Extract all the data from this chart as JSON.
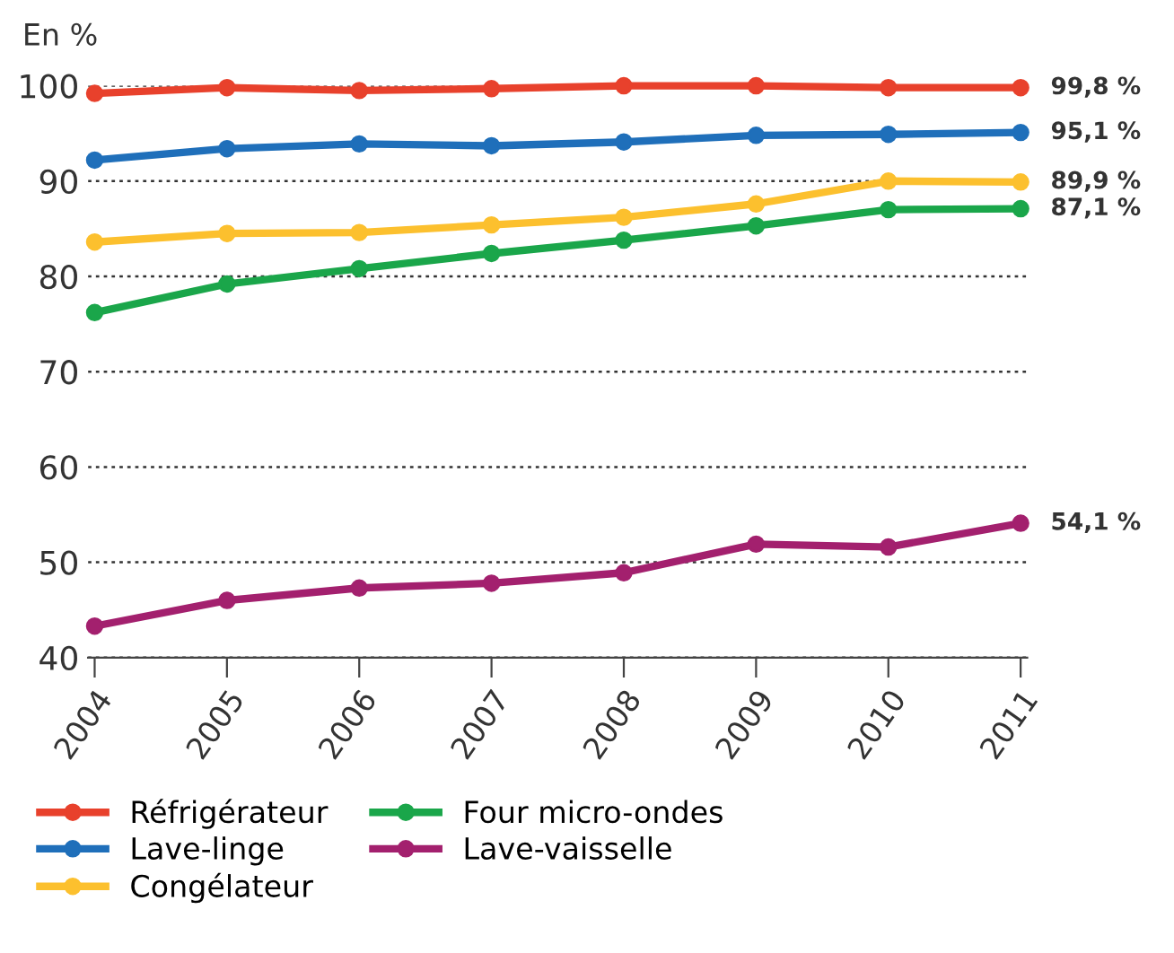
{
  "chart_data": {
    "type": "line",
    "ylabel": "En %",
    "categories": [
      "2004",
      "2005",
      "2006",
      "2007",
      "2008",
      "2009",
      "2010",
      "2011"
    ],
    "ylim": [
      40,
      100
    ],
    "yticks": [
      40,
      50,
      60,
      70,
      80,
      90,
      100
    ],
    "grid": "y",
    "legend": "bottom",
    "marker": "circle",
    "line_style": "solid",
    "series": [
      {
        "name": "Réfrigérateur",
        "color": "#e8412c",
        "values": [
          99.2,
          99.8,
          99.5,
          99.7,
          100.0,
          100.0,
          99.8,
          99.8
        ],
        "value_labels": [
          null,
          null,
          null,
          null,
          null,
          null,
          null,
          "99,8 %"
        ]
      },
      {
        "name": "Lave-linge",
        "color": "#1f6fba",
        "values": [
          92.2,
          93.4,
          93.9,
          93.7,
          94.1,
          94.8,
          94.9,
          95.1
        ],
        "value_labels": [
          null,
          null,
          null,
          null,
          null,
          null,
          null,
          "95,1 %"
        ]
      },
      {
        "name": "Congélateur",
        "color": "#fcc02e",
        "values": [
          83.6,
          84.5,
          84.6,
          85.4,
          86.2,
          87.6,
          90.0,
          89.9
        ],
        "value_labels": [
          null,
          null,
          null,
          null,
          null,
          null,
          null,
          "89,9 %"
        ]
      },
      {
        "name": "Four micro-ondes",
        "color": "#1aa64a",
        "values": [
          76.2,
          79.2,
          80.8,
          82.4,
          83.8,
          85.3,
          87.0,
          87.1
        ],
        "value_labels": [
          null,
          null,
          null,
          null,
          null,
          null,
          null,
          "87,1 %"
        ]
      },
      {
        "name": "Lave-vaisselle",
        "color": "#a3206e",
        "values": [
          43.3,
          46.0,
          47.3,
          47.8,
          48.9,
          51.9,
          51.6,
          54.1
        ],
        "value_labels": [
          null,
          null,
          null,
          null,
          null,
          null,
          null,
          "54,1 %"
        ]
      }
    ]
  }
}
